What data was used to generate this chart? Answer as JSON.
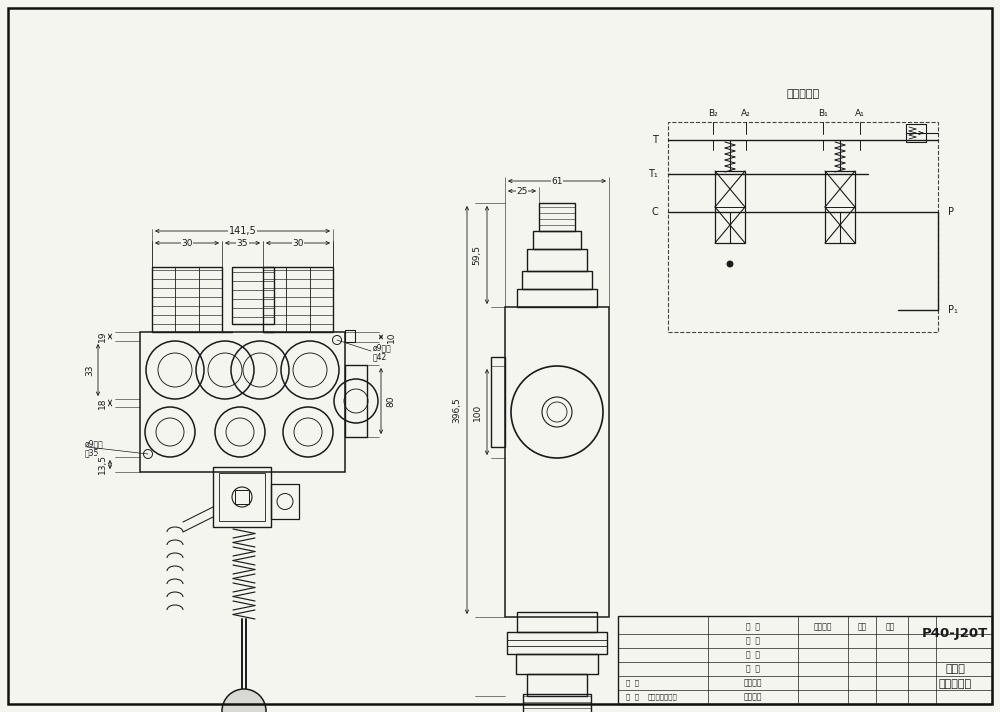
{
  "bg_color": "#f5f5f0",
  "line_color": "#1a1a1a",
  "dim_color": "#1a1a1a",
  "title": "P40-J20T",
  "subtitle1": "多路阀",
  "subtitle2": "外型尺寸图",
  "schema_title": "液压原理图",
  "dim_141": "141,5",
  "dim_30a": "30",
  "dim_35": "35",
  "dim_30b": "30",
  "dim_19": "19",
  "dim_18": "18",
  "dim_33": "33",
  "dim_135": "13,5",
  "dim_10": "10",
  "dim_80": "80",
  "dim_42": "42",
  "dim_35b": "35",
  "dim_hole": "ø9螺孔",
  "dim_high": "高42",
  "dim_high2": "高35",
  "dim_61": "61",
  "dim_25": "25",
  "dim_595": "59,5",
  "dim_3965": "396,5",
  "dim_100": "100",
  "label_B2": "B₂",
  "label_A2": "A₂",
  "label_B1": "B₁",
  "label_A1": "A₁",
  "label_T": "T",
  "label_T1": "T₁",
  "label_C": "C",
  "label_P": "P",
  "label_P1": "P₁"
}
